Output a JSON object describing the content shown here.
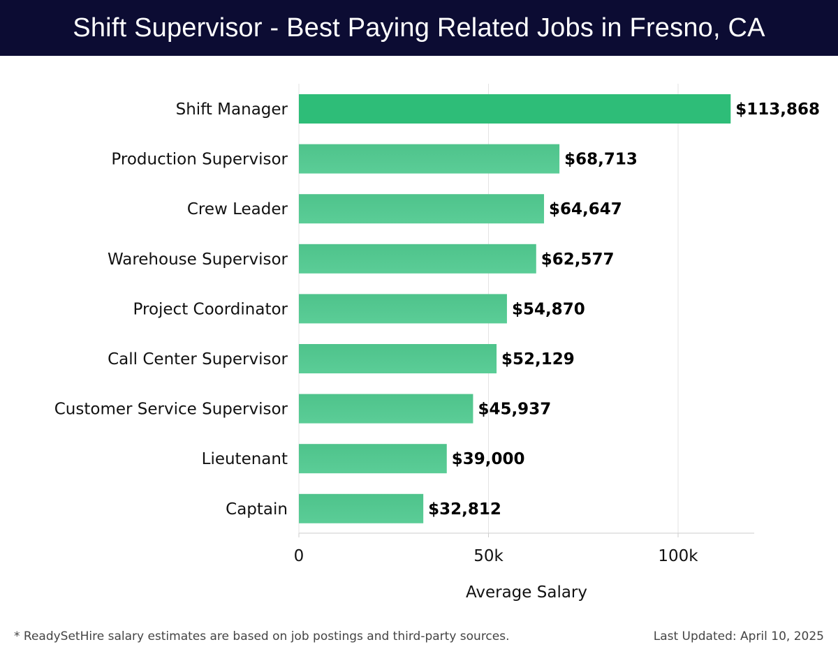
{
  "header": {
    "title": "Shift Supervisor - Best Paying Related Jobs in Fresno, CA"
  },
  "colors": {
    "header_bg": "#0c0c33",
    "bar_top": "#2ebd78",
    "bar_gradient_start": "#4ec38b",
    "bar_gradient_end": "#5bcd97",
    "gridline": "#e3e3e3",
    "axis": "#cccccc"
  },
  "chart_data": {
    "type": "bar",
    "orientation": "horizontal",
    "categories": [
      "Shift Manager",
      "Production Supervisor",
      "Crew Leader",
      "Warehouse Supervisor",
      "Project Coordinator",
      "Call Center Supervisor",
      "Customer Service Supervisor",
      "Lieutenant",
      "Captain"
    ],
    "values": [
      113868,
      68713,
      64647,
      62577,
      54870,
      52129,
      45937,
      39000,
      32812
    ],
    "value_labels": [
      "$113,868",
      "$68,713",
      "$64,647",
      "$62,577",
      "$54,870",
      "$52,129",
      "$45,937",
      "$39,000",
      "$32,812"
    ],
    "xlabel": "Average Salary",
    "ylabel": "",
    "xlim": [
      0,
      120000
    ],
    "xticks": [
      0,
      50000,
      100000
    ],
    "xtick_labels": [
      "0",
      "50k",
      "100k"
    ],
    "grid": "vertical",
    "legend": "none"
  },
  "footer": {
    "note": "* ReadySetHire salary estimates are based on job postings and third-party sources.",
    "updated": "Last Updated: April 10, 2025"
  }
}
